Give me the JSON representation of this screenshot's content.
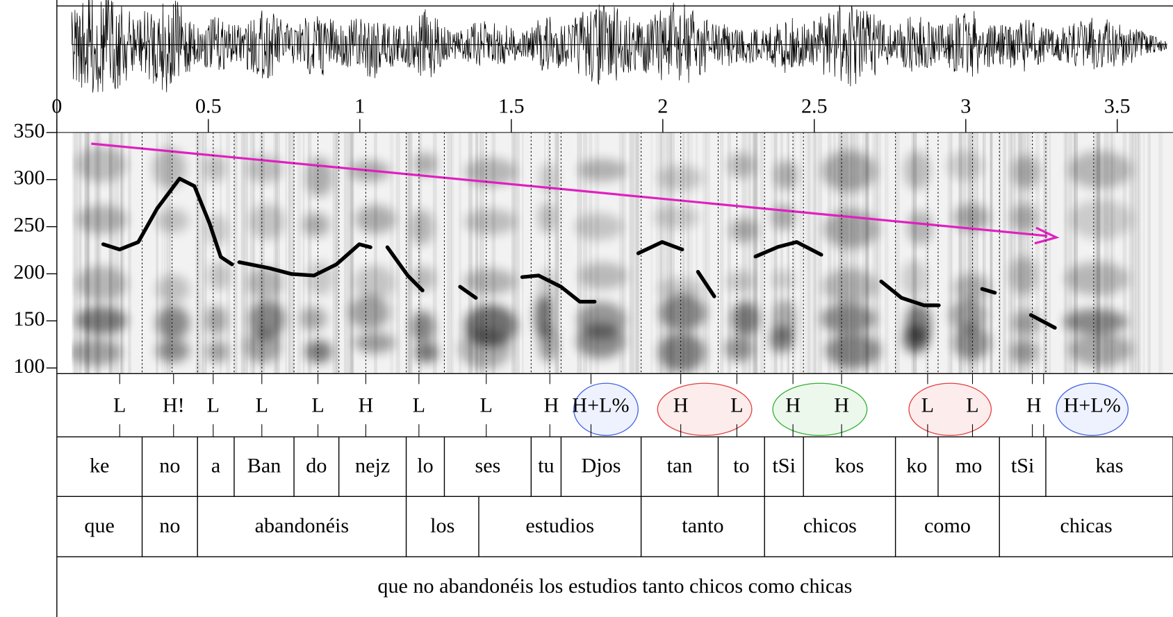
{
  "chart_data": {
    "type": "line",
    "xlim": [
      0,
      3.684
    ],
    "xticks": [
      0,
      0.5,
      1,
      1.5,
      2,
      2.5,
      3,
      3.5
    ],
    "ylim": [
      94,
      350
    ],
    "yticks": [
      100,
      150,
      200,
      250,
      300,
      350
    ],
    "series": [
      {
        "color": "#000000",
        "x": [
          0.153,
          0.207,
          0.269,
          0.331,
          0.405,
          0.454,
          0.504,
          0.541,
          0.578,
          null,
          0.602,
          0.701,
          0.775,
          0.849,
          0.923,
          0.998,
          1.035,
          null,
          1.091,
          1.158,
          1.207,
          null,
          1.331,
          1.383,
          null,
          1.536,
          1.59,
          1.664,
          1.726,
          1.775,
          null,
          1.919,
          1.998,
          2.064,
          null,
          2.116,
          2.17,
          null,
          2.306,
          2.38,
          2.442,
          2.523,
          null,
          2.721,
          2.788,
          2.862,
          2.911,
          null,
          3.054,
          3.096,
          null,
          3.215,
          3.294
        ],
        "values": [
          231.3,
          225.8,
          233.7,
          269.3,
          301,
          293,
          253.5,
          217.9,
          210,
          null,
          212.3,
          206,
          199.7,
          198.1,
          210,
          231.3,
          228.2,
          null,
          228.2,
          198.1,
          182.3,
          null,
          186.2,
          174.4,
          null,
          196.5,
          198.1,
          186.2,
          170.4,
          170.4,
          null,
          221.8,
          233.7,
          225.8,
          null,
          202.1,
          176,
          null,
          218.3,
          228.5,
          233.7,
          220.3,
          null,
          191.8,
          174.4,
          166.5,
          166.5,
          null,
          183.9,
          179.9,
          null,
          156.2,
          142.7
        ]
      }
    ]
  },
  "tiers": {
    "tones": [
      "L",
      "H!",
      "L",
      "L",
      "L",
      "H",
      "L",
      "L",
      "H",
      "H+L%",
      "H",
      "L",
      "H",
      "H",
      "L",
      "L",
      "H",
      "H+L%"
    ],
    "syllables": [
      "ke",
      "no",
      "a",
      "Ban",
      "do",
      "nejz",
      "lo",
      "ses",
      "tu",
      "Djos",
      "tan",
      "to",
      "tSi",
      "kos",
      "ko",
      "mo",
      "tSi",
      "kas"
    ],
    "words": [
      "que",
      "no",
      "abandonéis",
      "los",
      "estudios",
      "tanto",
      "chicos",
      "como",
      "chicas"
    ],
    "sentence": "que no abandonéis los estudios tanto chicos como chicas"
  }
}
